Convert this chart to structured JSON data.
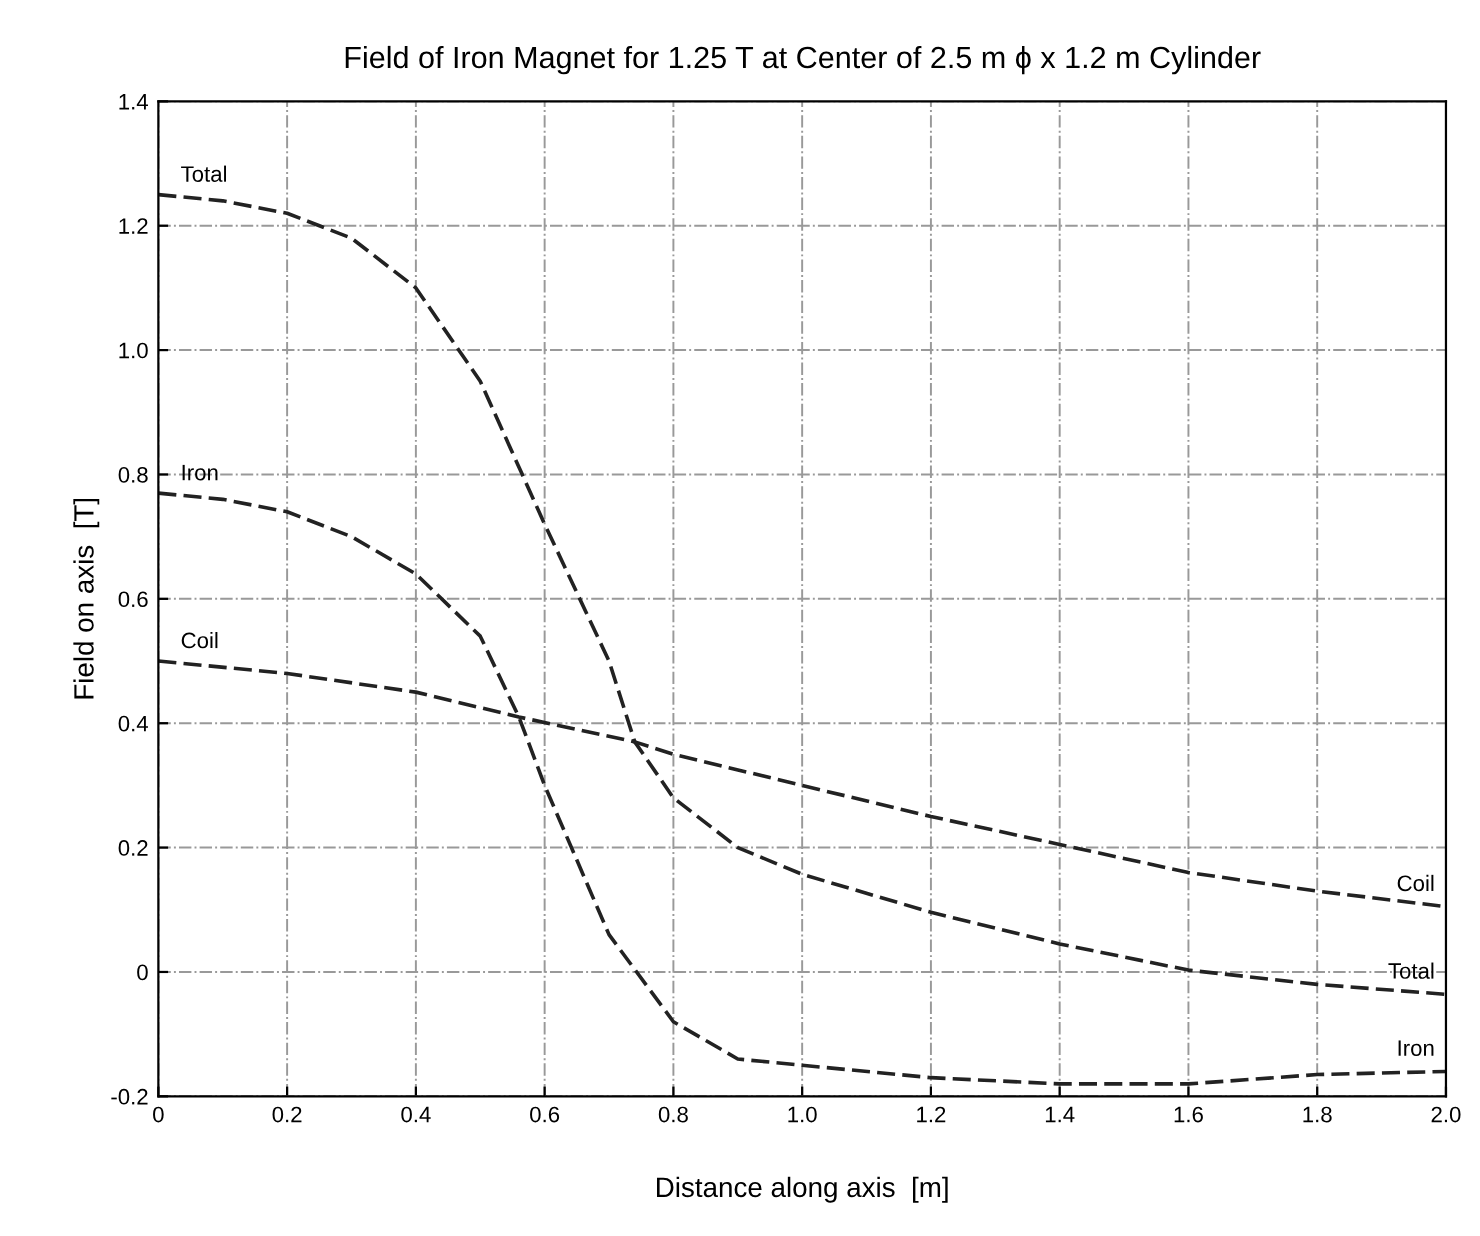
{
  "chart_data": {
    "type": "line",
    "title": "Field of Iron Magnet for 1.25 T at Center of 2.5 m ϕ x 1.2 m Cylinder",
    "xlabel": "Distance along axis  [m]",
    "ylabel": "Field on axis  [T]",
    "xlim": [
      0,
      2
    ],
    "ylim": [
      -0.2,
      1.4
    ],
    "xticks": [
      0,
      0.2,
      0.4,
      0.6,
      0.8,
      {
        "value": 1,
        "label": "1.0"
      },
      1.2,
      1.4,
      1.6,
      1.8,
      {
        "value": 2,
        "label": "2.0"
      }
    ],
    "yticks": [
      -0.2,
      0,
      0.2,
      0.4,
      0.6,
      0.8,
      {
        "value": 1,
        "label": "1.0"
      },
      1.2,
      1.4
    ],
    "grid": true,
    "line_style": "dashed",
    "marker": "none",
    "series": [
      {
        "name": "Total",
        "color": "#222222",
        "x": [
          0,
          0.1,
          0.2,
          0.3,
          0.4,
          0.5,
          0.6,
          0.7,
          0.74,
          0.8,
          0.9,
          1.0,
          1.2,
          1.4,
          1.6,
          1.8,
          2.0
        ],
        "values": [
          1.25,
          1.24,
          1.22,
          1.18,
          1.1,
          0.95,
          0.72,
          0.5,
          0.37,
          0.28,
          0.2,
          0.157,
          0.096,
          0.045,
          0.003,
          -0.02,
          -0.036
        ]
      },
      {
        "name": "Iron",
        "color": "#222222",
        "x": [
          0,
          0.1,
          0.2,
          0.3,
          0.4,
          0.5,
          0.56,
          0.6,
          0.7,
          0.8,
          0.9,
          1.0,
          1.2,
          1.4,
          1.6,
          1.8,
          2.0
        ],
        "values": [
          0.77,
          0.76,
          0.74,
          0.7,
          0.64,
          0.54,
          0.41,
          0.3,
          0.06,
          -0.08,
          -0.14,
          -0.15,
          -0.17,
          -0.18,
          -0.18,
          -0.165,
          -0.16
        ]
      },
      {
        "name": "Coil",
        "color": "#222222",
        "x": [
          0,
          0.2,
          0.4,
          0.56,
          0.74,
          0.8,
          1.0,
          1.2,
          1.4,
          1.6,
          1.8,
          2.0
        ],
        "values": [
          0.5,
          0.48,
          0.45,
          0.41,
          0.37,
          0.35,
          0.3,
          0.25,
          0.205,
          0.16,
          0.13,
          0.105
        ]
      }
    ]
  }
}
